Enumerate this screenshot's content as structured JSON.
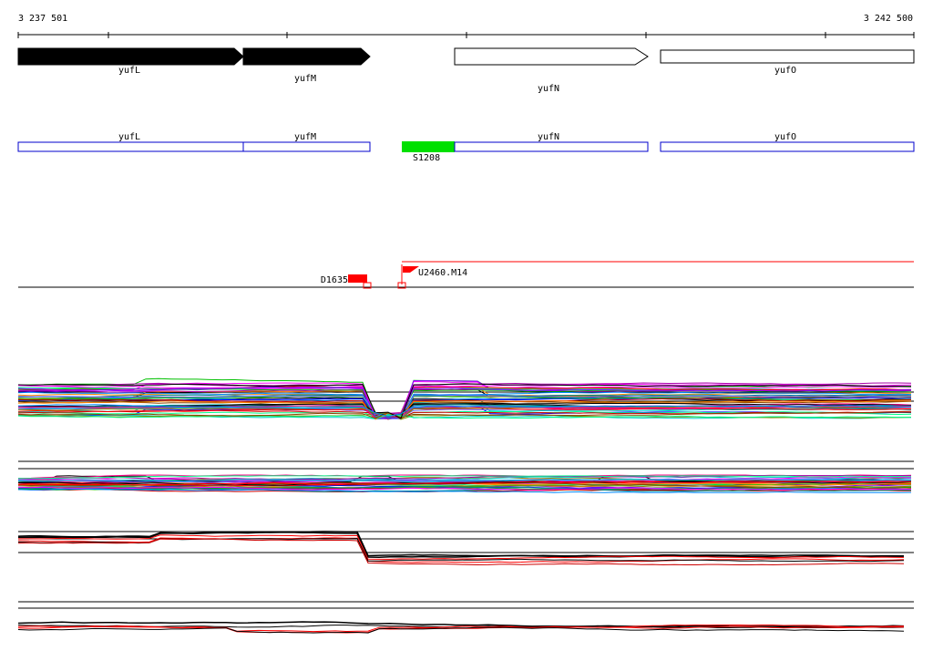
{
  "ruler": {
    "start_label": "3 237 501",
    "end_label": "3 242 500"
  },
  "genes": [
    {
      "name": "yufL",
      "strand": "+",
      "style": "filled"
    },
    {
      "name": "yufM",
      "strand": "+",
      "style": "filled"
    },
    {
      "name": "yufN",
      "strand": "+",
      "style": "outline"
    },
    {
      "name": "yufO",
      "strand": "+",
      "style": "outline"
    }
  ],
  "transcripts": [
    {
      "name": "yufL"
    },
    {
      "name": "yufM"
    },
    {
      "name": "yufN"
    },
    {
      "name": "yufO"
    }
  ],
  "highlight": {
    "name": "S1208",
    "color": "#00e000"
  },
  "markers": [
    {
      "name": "D1635",
      "color": "#ff0000"
    },
    {
      "name": "U2460.M14",
      "color": "#ff0000"
    }
  ],
  "colors": {
    "gene_fill": "#000000",
    "transcript_outline": "#0000cc",
    "marker": "#ff0000",
    "highlight": "#00e000"
  },
  "expression_palette": [
    "#ff0000",
    "#0000ff",
    "#00c000",
    "#ff00ff",
    "#00cccc",
    "#ff8800",
    "#8800ff",
    "#008888",
    "#888800",
    "#ff0088",
    "#00ff88",
    "#884400",
    "#cc0000",
    "#0088ff",
    "#6666ff",
    "#aa00aa"
  ]
}
